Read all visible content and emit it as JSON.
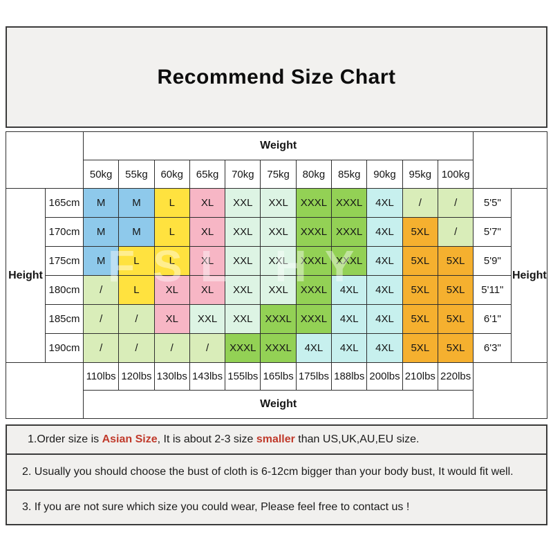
{
  "page": {
    "title": "Recommend Size Chart",
    "watermark": "FSL HY"
  },
  "colors": {
    "box_bg": "#F2F1EF",
    "border": "#3a3a3a",
    "highlight_red": "#C03A2B",
    "size_colors": {
      "M": "#8EC9EB",
      "L": "#FFE23F",
      "XL": "#F7B6C5",
      "XXL": "#DDF4E4",
      "XXXL": "#93D155",
      "4XL": "#C7F0EE",
      "5XL": "#F5B02F",
      "/": "#D9EDB9"
    }
  },
  "table": {
    "weight_header": "Weight",
    "weight_footer": "Weight",
    "height_label_left": "Height",
    "height_label_right": "Height",
    "weights_kg": [
      "50kg",
      "55kg",
      "60kg",
      "65kg",
      "70kg",
      "75kg",
      "80kg",
      "85kg",
      "90kg",
      "95kg",
      "100kg"
    ],
    "weights_lbs": [
      "110lbs",
      "120lbs",
      "130lbs",
      "143lbs",
      "155lbs",
      "165lbs",
      "175lbs",
      "188lbs",
      "200lbs",
      "210lbs",
      "220lbs"
    ],
    "rows": [
      {
        "cm": "165cm",
        "ft": "5'5\"",
        "sizes": [
          "M",
          "M",
          "L",
          "XL",
          "XXL",
          "XXL",
          "XXXL",
          "XXXL",
          "4XL",
          "/",
          "/"
        ]
      },
      {
        "cm": "170cm",
        "ft": "5'7\"",
        "sizes": [
          "M",
          "M",
          "L",
          "XL",
          "XXL",
          "XXL",
          "XXXL",
          "XXXL",
          "4XL",
          "5XL",
          "/"
        ]
      },
      {
        "cm": "175cm",
        "ft": "5'9\"",
        "sizes": [
          "M",
          "L",
          "L",
          "XL",
          "XXL",
          "XXL",
          "XXXL",
          "XXXL",
          "4XL",
          "5XL",
          "5XL"
        ]
      },
      {
        "cm": "180cm",
        "ft": "5'11\"",
        "sizes": [
          "/",
          "L",
          "XL",
          "XL",
          "XXL",
          "XXL",
          "XXXL",
          "4XL",
          "4XL",
          "5XL",
          "5XL"
        ]
      },
      {
        "cm": "185cm",
        "ft": "6'1\"",
        "sizes": [
          "/",
          "/",
          "XL",
          "XXL",
          "XXL",
          "XXXL",
          "XXXL",
          "4XL",
          "4XL",
          "5XL",
          "5XL"
        ]
      },
      {
        "cm": "190cm",
        "ft": "6'3\"",
        "sizes": [
          "/",
          "/",
          "/",
          "/",
          "XXXL",
          "XXXL",
          "4XL",
          "4XL",
          "4XL",
          "5XL",
          "5XL"
        ]
      }
    ]
  },
  "notes": [
    {
      "segments": [
        {
          "text": "1.Order size is ",
          "style": "normal"
        },
        {
          "text": "Asian Size",
          "style": "red"
        },
        {
          "text": ", It is about 2-3 size ",
          "style": "normal"
        },
        {
          "text": "smaller",
          "style": "red"
        },
        {
          "text": " than US,UK,AU,EU size.",
          "style": "normal"
        }
      ]
    },
    {
      "segments": [
        {
          "text": "2. Usually you should choose the bust of cloth is 6-12cm bigger than your body bust, It would fit well.",
          "style": "normal"
        }
      ]
    },
    {
      "segments": [
        {
          "text": "3. If you are not sure which size you could wear, Please feel free to contact us !",
          "style": "normal"
        }
      ]
    }
  ]
}
